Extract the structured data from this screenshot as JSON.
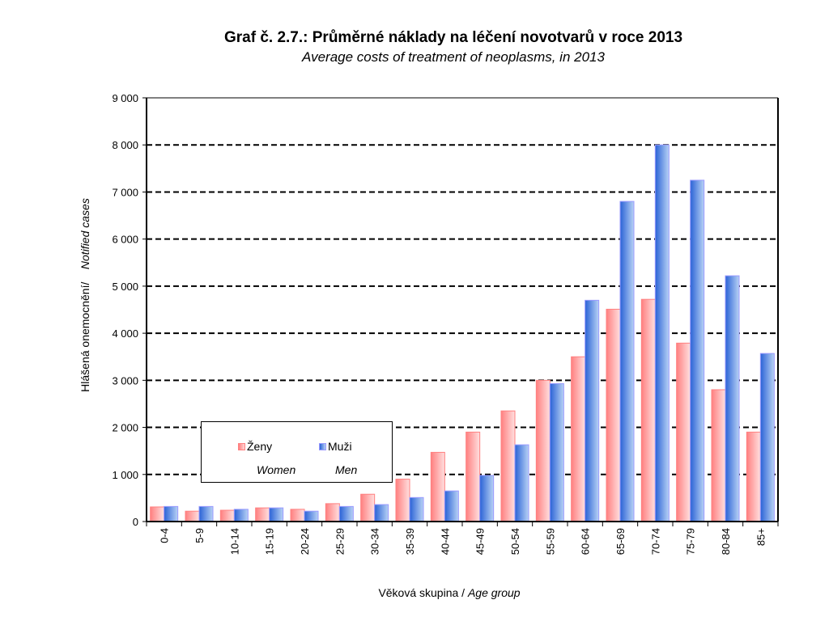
{
  "chart_data": {
    "type": "bar",
    "title": "Graf č. 2.7.: Průměrné náklady na léčení novotvarů v roce 2013",
    "subtitle": "Average costs of treatment of neoplasms, in 2013",
    "xlabel_cz": "Věková skupina / ",
    "xlabel_en": "Age group",
    "ylabel_cz": "Hlášená onemocnění/",
    "ylabel_en": "Notified cases",
    "ylim": [
      0,
      9000
    ],
    "yticks": [
      0,
      1000,
      2000,
      3000,
      4000,
      5000,
      6000,
      7000,
      8000,
      9000
    ],
    "ytick_labels": [
      "0",
      "1 000",
      "2 000",
      "3 000",
      "4 000",
      "5 000",
      "6 000",
      "7 000",
      "8 000",
      "9 000"
    ],
    "grid": "dashed horizontal",
    "legend_placement": "lower-left",
    "categories": [
      "0-4",
      "5-9",
      "10-14",
      "15-19",
      "20-24",
      "25-29",
      "30-34",
      "35-39",
      "40-44",
      "45-49",
      "50-54",
      "55-59",
      "60-64",
      "65-69",
      "70-74",
      "75-79",
      "80-84",
      "85+"
    ],
    "series": [
      {
        "name": "Ženy",
        "name_en": "Women",
        "color": "#ff8080",
        "values": [
          310,
          220,
          240,
          290,
          260,
          380,
          580,
          900,
          1470,
          1900,
          2350,
          3000,
          3500,
          4510,
          4720,
          3790,
          2800,
          1900
        ]
      },
      {
        "name": "Muži",
        "name_en": "Men",
        "color": "#2a62d6",
        "values": [
          320,
          320,
          260,
          290,
          220,
          320,
          360,
          510,
          650,
          980,
          1630,
          2930,
          4700,
          6800,
          8000,
          7250,
          5220,
          3570
        ]
      }
    ]
  }
}
